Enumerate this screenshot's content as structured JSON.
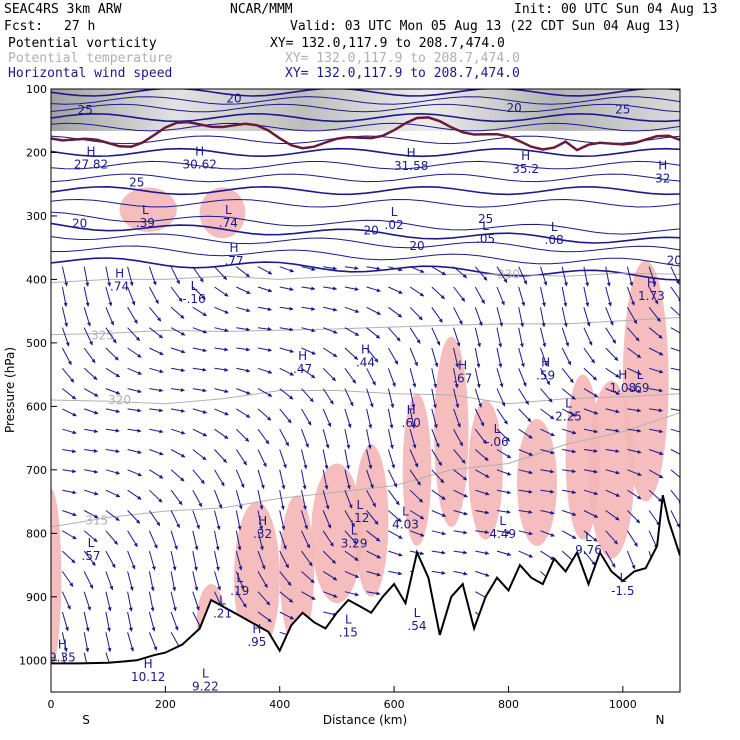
{
  "header": {
    "model": "SEAC4RS  3km ARW",
    "org": "NCAR/MMM",
    "init": "Init: 00 UTC Sun 04 Aug 13",
    "fcst_label": "Fcst:",
    "fcst_value": "27 h",
    "valid": "Valid: 03 UTC Mon 05 Aug 13 (22 CDT Sun 04 Aug 13)"
  },
  "fields": [
    {
      "name": "Potential vorticity",
      "xy": "XY= 132.0,117.9 to 208.7,474.0",
      "color": "#000000"
    },
    {
      "name": "Potential temperature",
      "xy": "XY= 132.0,117.9 to 208.7,474.0",
      "color": "#b0b0b0"
    },
    {
      "name": "Horizontal wind speed",
      "xy": "XY= 132.0,117.9 to 208.7,474.0",
      "color": "#1a1a8c"
    }
  ],
  "chart_data": {
    "type": "cross-section",
    "xlabel": "Distance (km)",
    "ylabel": "Pressure (hPa)",
    "xlim": [
      0,
      1100
    ],
    "ylim": [
      1050,
      100
    ],
    "x_ticks": [
      0,
      200,
      400,
      600,
      800,
      1000
    ],
    "y_ticks": [
      100,
      200,
      300,
      400,
      500,
      600,
      700,
      800,
      900,
      1000
    ],
    "x_end_labels": {
      "left": "S",
      "right": "N"
    },
    "colors": {
      "pv_high": "#f4b6b6",
      "wind": "#1a1a8c",
      "theta": "#b0b0b0",
      "terrain": "#000000",
      "tropopause": "#6b1a3a"
    },
    "terrain": {
      "x": [
        0,
        50,
        100,
        150,
        180,
        200,
        230,
        260,
        280,
        300,
        330,
        360,
        380,
        400,
        420,
        440,
        460,
        480,
        500,
        520,
        540,
        560,
        580,
        600,
        620,
        640,
        660,
        680,
        700,
        720,
        740,
        760,
        780,
        800,
        820,
        840,
        860,
        880,
        900,
        920,
        940,
        960,
        980,
        1000,
        1020,
        1040,
        1060,
        1070,
        1080,
        1100
      ],
      "p": [
        1005,
        1005,
        1004,
        1000,
        992,
        988,
        975,
        950,
        905,
        915,
        930,
        945,
        955,
        985,
        945,
        925,
        940,
        950,
        925,
        905,
        915,
        925,
        900,
        880,
        910,
        830,
        870,
        960,
        900,
        880,
        950,
        900,
        870,
        890,
        850,
        870,
        880,
        840,
        860,
        830,
        880,
        830,
        860,
        875,
        860,
        855,
        820,
        740,
        780,
        835
      ]
    },
    "theta_contours": [
      {
        "label": "315",
        "label_x": 80,
        "label_p": 780,
        "x": [
          0,
          100,
          200,
          300,
          400,
          500,
          600,
          700,
          800,
          900,
          1000,
          1100
        ],
        "p": [
          790,
          775,
          765,
          760,
          745,
          735,
          725,
          700,
          690,
          660,
          640,
          610
        ]
      },
      {
        "label": "320",
        "label_x": 120,
        "label_p": 590,
        "x": [
          0,
          100,
          200,
          300,
          400,
          500,
          600,
          700,
          800,
          900,
          1000,
          1100
        ],
        "p": [
          590,
          592,
          596,
          588,
          575,
          575,
          580,
          582,
          596,
          588,
          585,
          580
        ]
      },
      {
        "label": "325",
        "label_x": 90,
        "label_p": 488,
        "x": [
          0,
          100,
          200,
          300,
          400,
          500,
          600,
          700,
          800,
          900,
          1000,
          1100
        ],
        "p": [
          487,
          485,
          480,
          482,
          480,
          478,
          475,
          472,
          470,
          470,
          465,
          460
        ]
      },
      {
        "label": "330",
        "label_x": 800,
        "label_p": 392,
        "x": [
          0,
          100,
          200,
          300,
          400,
          500,
          600,
          700,
          800,
          900,
          1000,
          1100
        ],
        "p": [
          405,
          400,
          400,
          395,
          400,
          395,
          392,
          392,
          392,
          395,
          390,
          392
        ]
      }
    ],
    "speed_labels": [
      {
        "text": "25",
        "x": 60,
        "p": 133
      },
      {
        "text": "20",
        "x": 320,
        "p": 115
      },
      {
        "text": "25",
        "x": 150,
        "p": 247
      },
      {
        "text": "20",
        "x": 50,
        "p": 312
      },
      {
        "text": "25",
        "x": 760,
        "p": 305
      },
      {
        "text": "20",
        "x": 1090,
        "p": 370
      },
      {
        "text": "20",
        "x": 560,
        "p": 323
      },
      {
        "text": "20",
        "x": 640,
        "p": 347
      },
      {
        "text": "25",
        "x": 1000,
        "p": 132
      },
      {
        "text": "20",
        "x": 810,
        "p": 130
      }
    ],
    "pv_extrema": [
      {
        "kind": "L",
        "x": 165,
        "p": 300,
        "value": ".39"
      },
      {
        "kind": "L",
        "x": 310,
        "p": 300,
        "value": ".74"
      },
      {
        "kind": "H",
        "x": 320,
        "p": 360,
        "value": ".77"
      },
      {
        "kind": "H",
        "x": 120,
        "p": 400,
        "value": ".74"
      },
      {
        "kind": "L",
        "x": 250,
        "p": 420,
        "value": "-.16"
      },
      {
        "kind": "L",
        "x": 600,
        "p": 303,
        "value": ".02"
      },
      {
        "kind": "L",
        "x": 760,
        "p": 325,
        "value": ".05"
      },
      {
        "kind": "L",
        "x": 880,
        "p": 327,
        "value": ".08"
      },
      {
        "kind": "H",
        "x": 1050,
        "p": 415,
        "value": "1.73"
      },
      {
        "kind": "H",
        "x": 440,
        "p": 530,
        "value": ".47"
      },
      {
        "kind": "H",
        "x": 550,
        "p": 520,
        "value": ".44"
      },
      {
        "kind": "H",
        "x": 720,
        "p": 545,
        "value": ".67"
      },
      {
        "kind": "H",
        "x": 865,
        "p": 540,
        "value": ".59"
      },
      {
        "kind": "H",
        "x": 1000,
        "p": 560,
        "value": "1.08"
      },
      {
        "kind": "L",
        "x": 1030,
        "p": 560,
        "value": ".69"
      },
      {
        "kind": "L",
        "x": 905,
        "p": 605,
        "value": "2.25"
      },
      {
        "kind": "H",
        "x": 630,
        "p": 615,
        "value": ".60"
      },
      {
        "kind": "L",
        "x": 780,
        "p": 645,
        "value": "-.06"
      },
      {
        "kind": "L",
        "x": 540,
        "p": 765,
        "value": ".12"
      },
      {
        "kind": "L",
        "x": 620,
        "p": 775,
        "value": "4.03"
      },
      {
        "kind": "L",
        "x": 530,
        "p": 805,
        "value": "3.29"
      },
      {
        "kind": "L",
        "x": 790,
        "p": 790,
        "value": "4.49"
      },
      {
        "kind": "H",
        "x": 370,
        "p": 790,
        "value": ".32"
      },
      {
        "kind": "L",
        "x": 70,
        "p": 825,
        "value": ".57"
      },
      {
        "kind": "L",
        "x": 330,
        "p": 880,
        "value": ".19"
      },
      {
        "kind": "L",
        "x": 300,
        "p": 915,
        "value": ".21"
      },
      {
        "kind": "L",
        "x": 940,
        "p": 815,
        "value": "9.76"
      },
      {
        "kind": "L",
        "x": 1000,
        "p": 880,
        "value": "-1.5"
      },
      {
        "kind": "H",
        "x": 360,
        "p": 960,
        "value": ".95"
      },
      {
        "kind": "L",
        "x": 520,
        "p": 945,
        "value": ".15"
      },
      {
        "kind": "L",
        "x": 640,
        "p": 935,
        "value": ".54"
      },
      {
        "kind": "H",
        "x": 20,
        "p": 985,
        "value": "9.35"
      },
      {
        "kind": "H",
        "x": 170,
        "p": 1015,
        "value": "10.12"
      },
      {
        "kind": "L",
        "x": 270,
        "p": 1030,
        "value": "9.22"
      },
      {
        "kind": "H",
        "x": 70,
        "p": 208,
        "value": "27.82"
      },
      {
        "kind": "H",
        "x": 260,
        "p": 208,
        "value": "30.62"
      },
      {
        "kind": "H",
        "x": 630,
        "p": 210,
        "value": "31.58"
      },
      {
        "kind": "H",
        "x": 830,
        "p": 215,
        "value": "35.2"
      },
      {
        "kind": "H",
        "x": 1070,
        "p": 230,
        "value": "32"
      }
    ]
  }
}
